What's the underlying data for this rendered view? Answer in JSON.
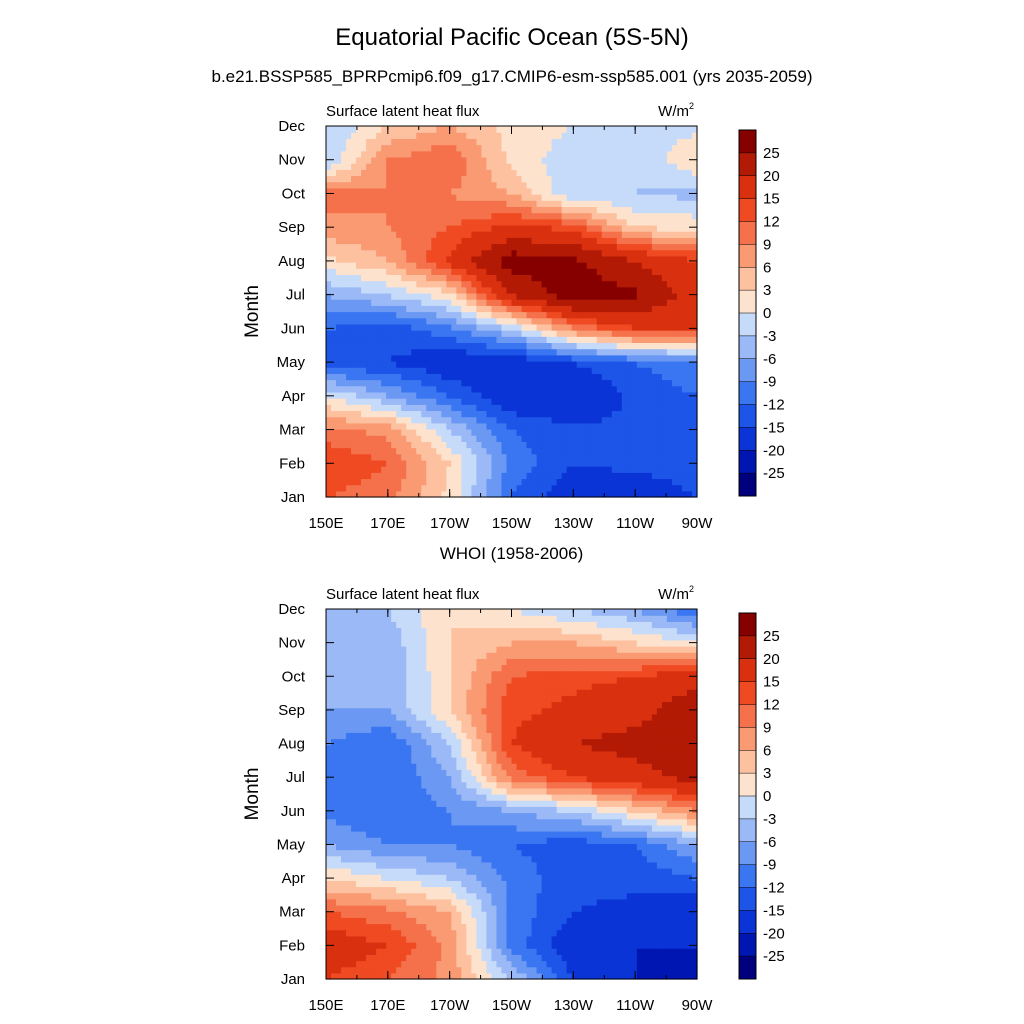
{
  "figure": {
    "title": "Equatorial Pacific Ocean (5S-5N)",
    "subtitle": "b.e21.BSSP585_BPRPcmip6.f09_g17.CMIP6-esm-ssp585.001 (yrs 2035-2059)"
  },
  "palette": {
    "colors": [
      "#00007f",
      "#0016b2",
      "#0a34d6",
      "#1d55e8",
      "#3a76f1",
      "#6a98f3",
      "#9ab9f6",
      "#c6daf9",
      "#fde3cd",
      "#fdc1a0",
      "#f99a72",
      "#f5714b",
      "#ef4a22",
      "#d9300f",
      "#b31a05",
      "#870000"
    ],
    "labels": [
      "-25",
      "-20",
      "-15",
      "-12",
      "-9",
      "-6",
      "-3",
      "0",
      "3",
      "6",
      "9",
      "12",
      "15",
      "20",
      "25"
    ]
  },
  "chart_data": [
    {
      "type": "heatmap",
      "title": "",
      "left_label": "Surface latent heat flux",
      "units_label": "W/m",
      "units_sup": "2",
      "xlabel": "",
      "ylabel": "Month",
      "x_tick_labels": [
        "150E",
        "170E",
        "170W",
        "150W",
        "130W",
        "110W",
        "90W"
      ],
      "y_tick_labels": [
        "Jan",
        "Feb",
        "Mar",
        "Apr",
        "May",
        "Jun",
        "Jul",
        "Aug",
        "Sep",
        "Oct",
        "Nov",
        "Dec"
      ],
      "legend": "right",
      "contour_levels": [
        -25,
        -20,
        -15,
        -12,
        -9,
        -6,
        -3,
        0,
        3,
        6,
        9,
        12,
        15,
        20,
        25
      ],
      "x": [
        150,
        170,
        190,
        210,
        230,
        250,
        270
      ],
      "months": [
        1,
        2,
        3,
        4,
        5,
        6,
        7,
        8,
        9,
        10,
        11,
        12
      ],
      "values": [
        [
          12,
          10,
          2,
          -12,
          -18,
          -18,
          -15
        ],
        [
          15,
          12,
          3,
          -10,
          -15,
          -14,
          -13
        ],
        [
          10,
          8,
          -3,
          -12,
          -14,
          -14,
          -12
        ],
        [
          0,
          -6,
          -12,
          -18,
          -20,
          -14,
          -12
        ],
        [
          -14,
          -15,
          -18,
          -18,
          -15,
          -12,
          -10
        ],
        [
          -12,
          -14,
          -10,
          -3,
          9,
          15,
          15
        ],
        [
          -6,
          -3,
          2,
          20,
          28,
          26,
          17
        ],
        [
          2,
          6,
          16,
          28,
          26,
          20,
          15
        ],
        [
          8,
          9,
          12,
          16,
          14,
          3,
          2
        ],
        [
          10,
          9,
          9,
          6,
          -3,
          -3,
          -4
        ],
        [
          -3,
          9,
          12,
          2,
          -2,
          -3,
          3
        ],
        [
          -3,
          3,
          6,
          2,
          0,
          -1,
          -1
        ]
      ]
    },
    {
      "type": "heatmap",
      "title": "WHOI (1958-2006)",
      "left_label": "Surface latent heat flux",
      "units_label": "W/m",
      "units_sup": "2",
      "xlabel": "",
      "ylabel": "Month",
      "x_tick_labels": [
        "150E",
        "170E",
        "170W",
        "150W",
        "130W",
        "110W",
        "90W"
      ],
      "y_tick_labels": [
        "Jan",
        "Feb",
        "Mar",
        "Apr",
        "May",
        "Jun",
        "Jul",
        "Aug",
        "Sep",
        "Oct",
        "Nov",
        "Dec"
      ],
      "legend": "right",
      "contour_levels": [
        -25,
        -20,
        -15,
        -12,
        -9,
        -6,
        -3,
        0,
        3,
        6,
        9,
        12,
        15,
        20,
        25
      ],
      "x": [
        150,
        170,
        190,
        210,
        230,
        250,
        270
      ],
      "months": [
        1,
        2,
        3,
        4,
        5,
        6,
        7,
        8,
        9,
        10,
        11,
        12
      ],
      "values": [
        [
          15,
          12,
          8,
          -3,
          -15,
          -20,
          -25
        ],
        [
          18,
          15,
          8,
          -10,
          -18,
          -20,
          -20
        ],
        [
          12,
          10,
          6,
          -10,
          -15,
          -16,
          -18
        ],
        [
          3,
          0,
          -3,
          -10,
          -14,
          -14,
          -12
        ],
        [
          -6,
          -9,
          -9,
          -12,
          -14,
          -12,
          -6
        ],
        [
          -10,
          -12,
          -9,
          -6,
          -3,
          3,
          9
        ],
        [
          -12,
          -12,
          -6,
          10,
          15,
          18,
          22
        ],
        [
          -9,
          -12,
          -3,
          15,
          20,
          22,
          22
        ],
        [
          -6,
          -6,
          3,
          14,
          16,
          18,
          24
        ],
        [
          -5,
          -6,
          3,
          12,
          14,
          15,
          18
        ],
        [
          -5,
          -5,
          3,
          6,
          6,
          3,
          0
        ],
        [
          -3,
          -3,
          3,
          0,
          -3,
          -6,
          -12
        ]
      ]
    }
  ]
}
